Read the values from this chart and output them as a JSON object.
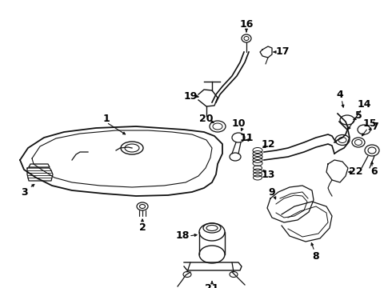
{
  "bg_color": "#ffffff",
  "line_color": "#111111",
  "text_color": "#000000",
  "fig_width": 4.9,
  "fig_height": 3.6,
  "dpi": 100,
  "imgw": 490,
  "imgh": 360
}
